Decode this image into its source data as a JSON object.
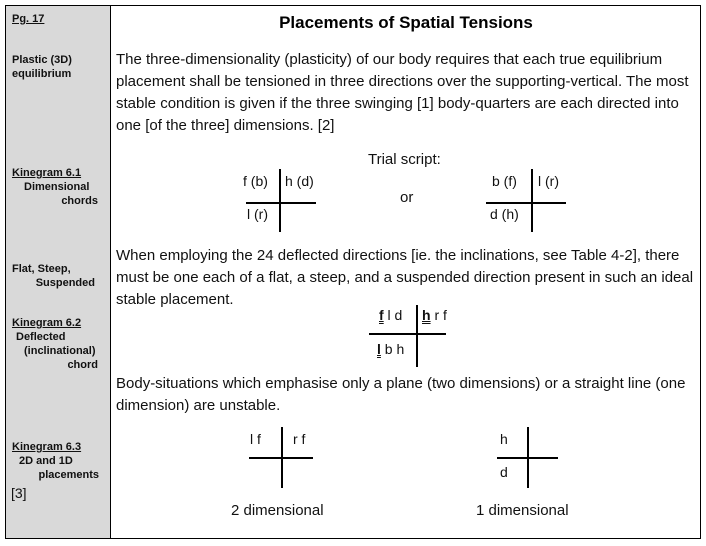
{
  "page": "Pg. 17",
  "title": "Placements of Spatial Tensions",
  "sidebar": {
    "plastic": [
      "Plastic (3D)",
      "equilibrium"
    ],
    "k61": {
      "title": "Kinegram 6.1",
      "lines": [
        "Dimensional",
        "chords"
      ]
    },
    "flat": [
      "Flat, Steep,",
      "Suspended"
    ],
    "k62": {
      "title": "Kinegram 6.2",
      "lines": [
        "Deflected",
        "(inclinational)",
        "chord"
      ]
    },
    "k63": {
      "title": "Kinegram 6.3",
      "lines": [
        "2D and 1D",
        "placements"
      ]
    },
    "note": "[3]"
  },
  "paragraphs": [
    "The three-dimensionality (plasticity) of our body requires that each true equilibrium placement shall be tensioned in three directions over the supporting-vertical. The most stable condition is given if the three swinging [1] body-quarters are each directed into one [of the three] dimensions. [2]",
    "When employing the 24 deflected directions [ie. the inclinations, see Table 4-2], there must be one each of a flat, a steep, and a suspended direction present in such an ideal stable placement.",
    "Body-situations which emphasise only a plane (two dimensions) or a straight line (one dimension) are unstable."
  ],
  "k61": {
    "trial": "Trial script:",
    "or": "or",
    "left": {
      "tl": "f (b)",
      "tr": "h (d)",
      "bl": "l (r)"
    },
    "right": {
      "tl": "b (f)",
      "tr": "l (r)",
      "bl": "d (h)"
    }
  },
  "k62": {
    "tl_key": "f",
    "tl_rest": " l d",
    "tr_key": "h",
    "tr_rest": " r f",
    "bl_key": "l",
    "bl_rest": " b h"
  },
  "k63": {
    "left": {
      "tl": "l f",
      "tr": "r f",
      "label": "2 dimensional"
    },
    "right": {
      "tl": "h",
      "bl": "d",
      "label": "1 dimensional"
    }
  }
}
